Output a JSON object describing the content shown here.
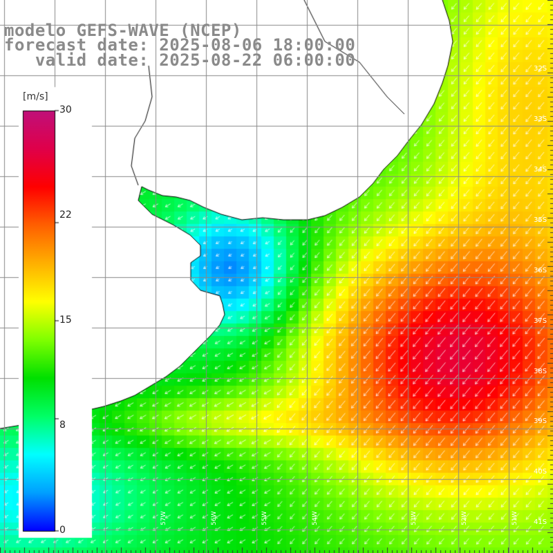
{
  "title": {
    "line1": "modelo GEFS-WAVE (NCEP)",
    "line2": "forecast date: 2025-08-06 18:00:00",
    "line3": "   valid date: 2025-08-22 06:00:00"
  },
  "colorbar": {
    "unit": "[m/s]",
    "ticks": [
      "30",
      "22",
      "15",
      "8",
      "0"
    ],
    "tick_values": [
      30,
      22,
      15,
      8,
      0
    ],
    "range": [
      0,
      30
    ],
    "stops": [
      "#0000ff",
      "#00a0ff",
      "#00ffff",
      "#00ff66",
      "#00e000",
      "#80ff00",
      "#ffff00",
      "#ffb000",
      "#ff6000",
      "#ff0000",
      "#e0004a",
      "#c0107a"
    ]
  },
  "map": {
    "lat_labels": [
      "32S",
      "33S",
      "34S",
      "35S",
      "36S",
      "37S",
      "38S",
      "39S",
      "40S",
      "41S"
    ],
    "lon_labels": [
      "57W",
      "56W",
      "55W",
      "54W",
      "53W",
      "52W",
      "51W"
    ],
    "colors": {
      "land": "#ffffff",
      "grid": "#888888",
      "coast": "#000000",
      "arrows": "#ffffff"
    }
  }
}
